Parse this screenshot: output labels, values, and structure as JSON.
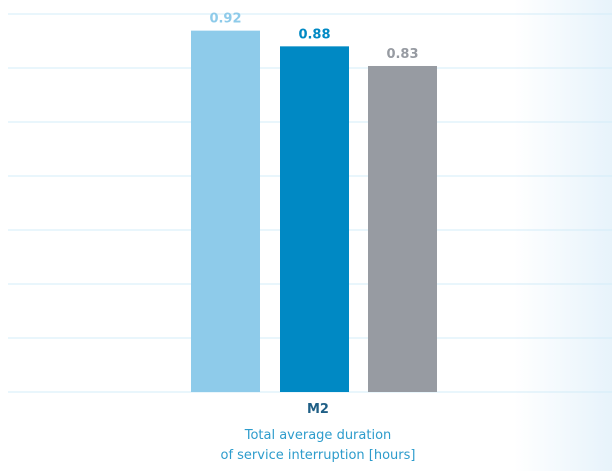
{
  "chart_data": {
    "type": "bar",
    "categories": [
      "M2"
    ],
    "category_description": [
      "Total average duration",
      "of service interruption [hours]"
    ],
    "series": [
      {
        "values": [
          0.92
        ],
        "color": "#8ecbea"
      },
      {
        "values": [
          0.88
        ],
        "color": "#0089c4"
      },
      {
        "values": [
          0.83
        ],
        "color": "#979ba2"
      }
    ],
    "data_labels": [
      "0.92",
      "0.88",
      "0.83"
    ],
    "label_colors": [
      "#8ecbea",
      "#0089c4",
      "#979ba2"
    ],
    "ylim": [
      0,
      0.97
    ],
    "grid": true,
    "grid_color": "#d3ecf8",
    "background_fade": "#e7f3fb",
    "legend": "none"
  }
}
